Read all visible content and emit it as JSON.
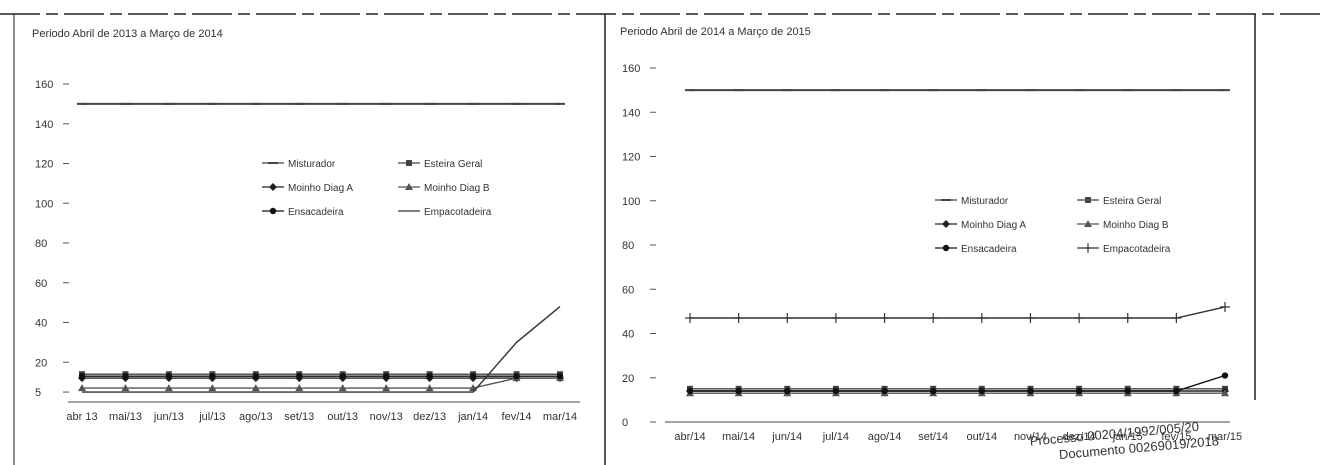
{
  "chart_data": [
    {
      "type": "line",
      "title": "Periodo Abril de 2013 a Março de 2014",
      "categories": [
        "abr 13",
        "mai/13",
        "jun/13",
        "jul/13",
        "ago/13",
        "set/13",
        "out/13",
        "nov/13",
        "dez/13",
        "jan/14",
        "fev/14",
        "mar/14"
      ],
      "ylim": [
        0,
        160
      ],
      "yticks": [
        5,
        20,
        40,
        60,
        80,
        100,
        120,
        140,
        160
      ],
      "grid": false,
      "legend_position": "right",
      "series": [
        {
          "name": "Misturador",
          "color": "#444444",
          "marker": "dash",
          "values": [
            150,
            150,
            150,
            150,
            150,
            150,
            150,
            150,
            150,
            150,
            150,
            150
          ]
        },
        {
          "name": "Esteira Geral",
          "color": "#444444",
          "marker": "square",
          "values": [
            14,
            14,
            14,
            14,
            14,
            14,
            14,
            14,
            14,
            14,
            14,
            14
          ]
        },
        {
          "name": "Moinho Diag A",
          "color": "#222222",
          "marker": "diamond",
          "values": [
            12,
            12,
            12,
            12,
            12,
            12,
            12,
            12,
            12,
            12,
            12,
            12
          ]
        },
        {
          "name": "Moinho Diag B",
          "color": "#555555",
          "marker": "triangle",
          "values": [
            7,
            7,
            7,
            7,
            7,
            7,
            7,
            7,
            7,
            7,
            12,
            12
          ]
        },
        {
          "name": "Ensacadeira",
          "color": "#111111",
          "marker": "circle",
          "values": [
            13,
            13,
            13,
            13,
            13,
            13,
            13,
            13,
            13,
            13,
            13,
            13
          ]
        },
        {
          "name": "Empacotadeira",
          "color": "#333333",
          "marker": "none",
          "values": [
            5,
            5,
            5,
            5,
            5,
            5,
            5,
            5,
            5,
            5,
            30,
            48
          ]
        }
      ]
    },
    {
      "type": "line",
      "title": "Periodo Abril de 2014 a Março de 2015",
      "categories": [
        "abr/14",
        "mai/14",
        "jun/14",
        "jul/14",
        "ago/14",
        "set/14",
        "out/14",
        "nov/14",
        "dez/14",
        "jan/15",
        "fev/15",
        "mar/15"
      ],
      "ylim": [
        0,
        160
      ],
      "yticks": [
        0,
        20,
        40,
        60,
        80,
        100,
        120,
        140,
        160
      ],
      "grid": false,
      "legend_position": "right",
      "series": [
        {
          "name": "Misturador",
          "color": "#444444",
          "marker": "dash",
          "values": [
            150,
            150,
            150,
            150,
            150,
            150,
            150,
            150,
            150,
            150,
            150,
            150
          ]
        },
        {
          "name": "Esteira Geral",
          "color": "#444444",
          "marker": "square",
          "values": [
            15,
            15,
            15,
            15,
            15,
            15,
            15,
            15,
            15,
            15,
            15,
            15
          ]
        },
        {
          "name": "Moinho Diag A",
          "color": "#222222",
          "marker": "diamond",
          "values": [
            14,
            14,
            14,
            14,
            14,
            14,
            14,
            14,
            14,
            14,
            14,
            14
          ]
        },
        {
          "name": "Moinho Diag B",
          "color": "#555555",
          "marker": "triangle",
          "values": [
            13,
            13,
            13,
            13,
            13,
            13,
            13,
            13,
            13,
            13,
            13,
            13
          ]
        },
        {
          "name": "Ensacadeira",
          "color": "#111111",
          "marker": "circle",
          "values": [
            14,
            14,
            14,
            14,
            14,
            14,
            14,
            14,
            14,
            14,
            14,
            21
          ]
        },
        {
          "name": "Empacotadeira",
          "color": "#333333",
          "marker": "plus",
          "values": [
            47,
            47,
            47,
            47,
            47,
            47,
            47,
            47,
            47,
            47,
            47,
            52
          ]
        }
      ]
    }
  ],
  "stamp": {
    "line1": "Processo 00204/1992/005/20",
    "line2": "Documento 00269019/2018"
  }
}
